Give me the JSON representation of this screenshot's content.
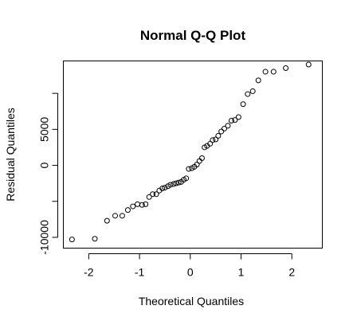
{
  "chart_data": {
    "type": "scatter",
    "title": "Normal Q-Q Plot",
    "xlabel": "Theoretical Quantiles",
    "ylabel": "Residual Quantiles",
    "xlim": [
      -2.5,
      2.6
    ],
    "ylim": [
      -11500,
      14500
    ],
    "x_ticks": [
      -2,
      -1,
      0,
      1,
      2
    ],
    "x_tick_labels": [
      "-2",
      "-1",
      "0",
      "1",
      "2"
    ],
    "y_ticks": [
      -10000,
      0,
      5000
    ],
    "y_tick_labels": [
      "-10000",
      "0",
      "5000"
    ],
    "y_ticks_unlabeled": [
      -5000,
      10000
    ],
    "grid": false,
    "point_style": "open-circle",
    "series": [
      {
        "x": [
          -2.33,
          -1.88,
          -1.64,
          -1.48,
          -1.34,
          -1.23,
          -1.13,
          -1.04,
          -0.95,
          -0.88,
          -0.81,
          -0.74,
          -0.67,
          -0.61,
          -0.55,
          -0.5,
          -0.44,
          -0.39,
          -0.33,
          -0.28,
          -0.23,
          -0.18,
          -0.13,
          -0.08,
          -0.03,
          0.03,
          0.08,
          0.13,
          0.18,
          0.23,
          0.28,
          0.33,
          0.39,
          0.44,
          0.5,
          0.55,
          0.61,
          0.67,
          0.74,
          0.81,
          0.88,
          0.95,
          1.04,
          1.13,
          1.23,
          1.34,
          1.48,
          1.64,
          1.88,
          2.33
        ],
        "y": [
          -10300,
          -10200,
          -7700,
          -7000,
          -7000,
          -6200,
          -5700,
          -5400,
          -5500,
          -5400,
          -4400,
          -4000,
          -4000,
          -3500,
          -3200,
          -3100,
          -2900,
          -2700,
          -2600,
          -2500,
          -2400,
          -2300,
          -2000,
          -1800,
          -500,
          -400,
          -200,
          100,
          600,
          1000,
          2500,
          2700,
          3000,
          3500,
          3600,
          4100,
          4700,
          5100,
          5500,
          6200,
          6300,
          6700,
          8500,
          9900,
          10300,
          11800,
          13000,
          13000,
          13500,
          14000
        ]
      }
    ]
  }
}
